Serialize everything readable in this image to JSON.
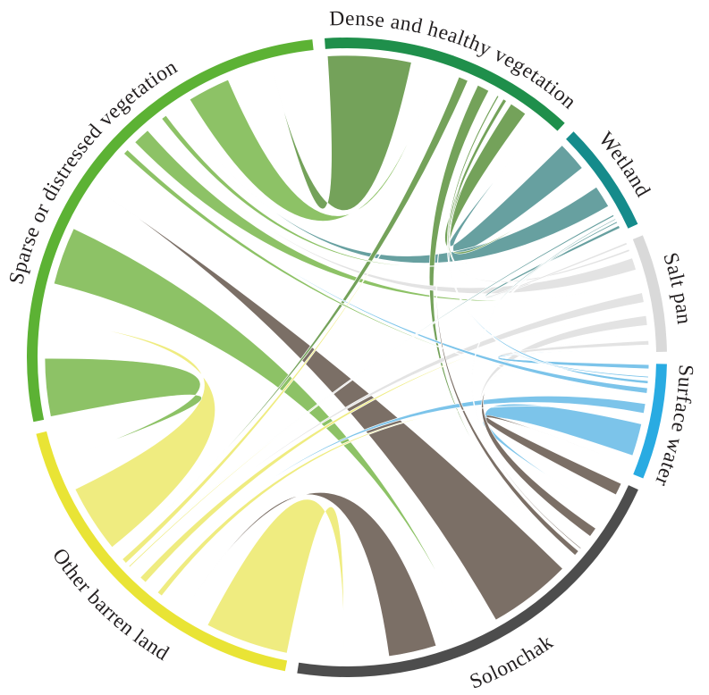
{
  "figure": {
    "background": "#ffffff",
    "description": "Chord diagram of land cover class transitions"
  },
  "chart_data": {
    "type": "chord",
    "direction": "clockwise",
    "start_angle_deg": -4,
    "sector_gap_deg": 2.2,
    "legend": "none",
    "categories": [
      {
        "label": "Dense and healthy vegetation",
        "arc_color": "#1f8f4b",
        "chord_color": "#74a25a"
      },
      {
        "label": "Wetland",
        "arc_color": "#158b8b",
        "chord_color": "#67a0a0"
      },
      {
        "label": "Salt pan",
        "arc_color": "#d9d9d9",
        "chord_color": "#e3e3e3"
      },
      {
        "label": "Surface water",
        "arc_color": "#29abe2",
        "chord_color": "#7cc4ea"
      },
      {
        "label": "Solonchak",
        "arc_color": "#4d4d4d",
        "chord_color": "#7b6f66"
      },
      {
        "label": "Other barren land",
        "arc_color": "#e9e435",
        "chord_color": "#efec80"
      },
      {
        "label": "Sparse or distressed vegetation",
        "arc_color": "#5cb234",
        "chord_color": "#8dc266"
      }
    ],
    "matrix_note": "rows = source sector, columns = target sector, values estimated from ribbon widths (relative units)",
    "matrix": [
      [
        0,
        40,
        10,
        5,
        30,
        25,
        170
      ],
      [
        65,
        0,
        8,
        4,
        3,
        5,
        50
      ],
      [
        6,
        6,
        0,
        12,
        25,
        25,
        30
      ],
      [
        8,
        4,
        12,
        0,
        70,
        25,
        15
      ],
      [
        15,
        3,
        25,
        30,
        0,
        100,
        170
      ],
      [
        15,
        4,
        20,
        15,
        170,
        0,
        140
      ],
      [
        90,
        15,
        40,
        15,
        120,
        120,
        0
      ]
    ]
  }
}
